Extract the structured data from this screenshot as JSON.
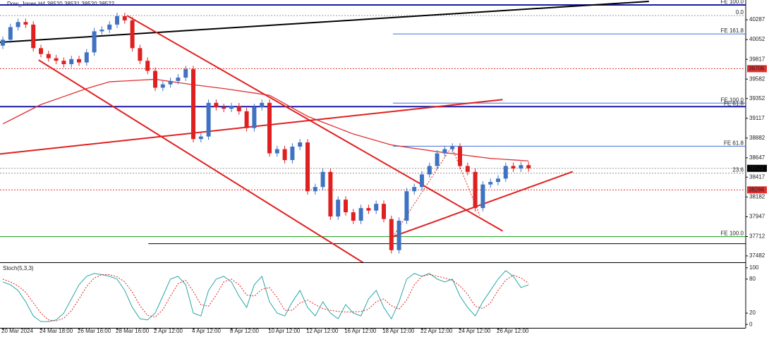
{
  "chart_data": [
    {
      "type": "candlestick",
      "title": "Dow_Jones,H4  38520 38531 38520 38522",
      "up_color": "#3f73c1",
      "down_color": "#e02020",
      "ylim": [
        37406,
        40522
      ],
      "yticks": [
        37482,
        37712,
        37947,
        38182,
        38417,
        38647,
        38882,
        39117,
        39352,
        39582,
        39817,
        40052,
        40287
      ],
      "categories": [
        "20 Mar 2024",
        null,
        null,
        null,
        null,
        "24 Mar 18:00",
        null,
        null,
        null,
        null,
        "26 Mar 16:00",
        null,
        null,
        null,
        null,
        "28 Mar 16:00",
        null,
        null,
        null,
        null,
        "2 Apr 12:00",
        null,
        null,
        null,
        null,
        "4 Apr 12:00",
        null,
        null,
        null,
        null,
        "8 Apr 12:00",
        null,
        null,
        null,
        null,
        "10 Apr 12:00",
        null,
        null,
        null,
        null,
        "12 Apr 12:00",
        null,
        null,
        null,
        null,
        "16 Apr 12:00",
        null,
        null,
        null,
        null,
        "18 Apr 12:00",
        null,
        null,
        null,
        null,
        "22 Apr 12:00",
        null,
        null,
        null,
        null,
        "24 Apr 12:00",
        null,
        null,
        null,
        null,
        "26 Apr 12:00",
        null,
        null,
        null,
        null
      ],
      "open": [
        39980,
        40050,
        40200,
        40260,
        40230,
        39950,
        39880,
        39830,
        39800,
        39760,
        39820,
        39780,
        39900,
        40150,
        40170,
        40230,
        40330,
        40280,
        39950,
        39800,
        39680,
        39480,
        39520,
        39560,
        39600,
        39700,
        38870,
        38900,
        39300,
        39250,
        39230,
        39260,
        39200,
        39000,
        39250,
        39300,
        38700,
        38750,
        38620,
        38780,
        38830,
        38250,
        38300,
        38480,
        37950,
        38150,
        38000,
        37900,
        38050,
        38020,
        38100,
        37920,
        37550,
        37900,
        38250,
        38300,
        38450,
        38550,
        38700,
        38750,
        38780,
        38550,
        38480,
        38050,
        38330,
        38360,
        38400,
        38550,
        38520,
        38560
      ],
      "high": [
        40090,
        40240,
        40300,
        40300,
        40270,
        39990,
        39920,
        39870,
        39840,
        39860,
        39860,
        39940,
        40190,
        40210,
        40270,
        40370,
        40370,
        40320,
        39990,
        39840,
        39720,
        39560,
        39600,
        39640,
        39740,
        39740,
        38940,
        39340,
        39340,
        39290,
        39300,
        39300,
        39240,
        39290,
        39340,
        39340,
        38790,
        38790,
        38820,
        38870,
        38870,
        38340,
        38520,
        38520,
        38190,
        38190,
        38040,
        38090,
        38090,
        38140,
        38140,
        37960,
        37940,
        38290,
        38340,
        38490,
        38590,
        38740,
        38790,
        38820,
        38820,
        38590,
        38520,
        38370,
        38400,
        38440,
        38590,
        38590,
        38600,
        38600
      ],
      "low": [
        39940,
        40010,
        40160,
        40190,
        39910,
        39840,
        39790,
        39760,
        39720,
        39720,
        39740,
        39740,
        39860,
        40110,
        40130,
        40190,
        40240,
        39910,
        39760,
        39640,
        39440,
        39440,
        39480,
        39520,
        39560,
        38830,
        38830,
        38860,
        39210,
        39190,
        39190,
        39160,
        38960,
        38960,
        39210,
        38660,
        38660,
        38580,
        38580,
        38740,
        38210,
        38210,
        38260,
        37910,
        37910,
        37960,
        37860,
        37860,
        37980,
        37980,
        37880,
        37510,
        37510,
        37860,
        38210,
        38260,
        38410,
        38510,
        38660,
        38710,
        38510,
        38440,
        38010,
        38010,
        38290,
        38320,
        38360,
        38480,
        38480,
        38482
      ],
      "close": [
        40050,
        40200,
        40260,
        40230,
        39950,
        39880,
        39830,
        39800,
        39760,
        39820,
        39780,
        39900,
        40150,
        40170,
        40230,
        40330,
        40280,
        39950,
        39800,
        39680,
        39480,
        39520,
        39560,
        39600,
        39700,
        38870,
        38900,
        39300,
        39250,
        39230,
        39260,
        39200,
        39000,
        39250,
        39300,
        38700,
        38750,
        38620,
        38780,
        38830,
        38250,
        38300,
        38480,
        37950,
        38150,
        38000,
        37900,
        38050,
        38020,
        38100,
        37920,
        37550,
        37900,
        38250,
        38300,
        38450,
        38550,
        38700,
        38750,
        38780,
        38550,
        38480,
        38050,
        38330,
        38360,
        38400,
        38550,
        38520,
        38560,
        38522
      ],
      "ma": {
        "color": "#e03030",
        "values": [
          39050,
          39096,
          39142,
          39188,
          39234,
          39280,
          39312,
          39343,
          39375,
          39407,
          39438,
          39470,
          39497,
          39523,
          39550,
          39555,
          39560,
          39565,
          39570,
          39575,
          39580,
          39567,
          39554,
          39541,
          39528,
          39515,
          39504,
          39493,
          39481,
          39470,
          39457,
          39443,
          39430,
          39417,
          39403,
          39390,
          39340,
          39290,
          39240,
          39190,
          39140,
          39105,
          39070,
          39035,
          39000,
          38965,
          38930,
          38904,
          38878,
          38852,
          38826,
          38800,
          38787,
          38773,
          38760,
          38747,
          38733,
          38720,
          38709,
          38697,
          38686,
          38674,
          38663,
          38651,
          38640,
          38634,
          38628,
          38622,
          38616,
          38610
        ]
      },
      "levels": [
        {
          "value": 40463,
          "color": "#1a1aa6",
          "width": 2,
          "name": "FE 100.0"
        },
        {
          "value": 40337,
          "color": "#999999",
          "style": "dotted",
          "name": "0.0"
        },
        {
          "value": 40119,
          "color": "#3a6fd8",
          "from": 51.2,
          "name": "FE 161.8"
        },
        {
          "value": 39706,
          "color": "#e03030",
          "style": "dotted",
          "badge": "#e03030"
        },
        {
          "value": 39297,
          "color": "#3a6fd8",
          "from": 51.2,
          "name": "FE 100.0"
        },
        {
          "value": 39255,
          "color": "#1a1aa6",
          "width": 2,
          "name": "FE 61.8"
        },
        {
          "value": 38785,
          "color": "#3a6fd8",
          "from": 51.2,
          "name": "FE 61.8"
        },
        {
          "value": 38522,
          "color": "#999999",
          "style": "dotted",
          "badge": "#000000"
        },
        {
          "value": 38466,
          "color": "#999999",
          "style": "dotted",
          "name": "23.6"
        },
        {
          "value": 38266,
          "color": "#e03030",
          "style": "dotted",
          "badge": "#e03030"
        },
        {
          "value": 37711,
          "color": "#1a9a1a",
          "name": "FE 100.0"
        },
        {
          "value": 37627,
          "color": "#000000",
          "from": 19.1
        }
      ],
      "trendlines": [
        {
          "color": "#000000",
          "width": 2,
          "x": [
            -0.37,
            84.8
          ],
          "y": [
            40019,
            40505
          ]
        },
        {
          "color": "#e02020",
          "width": 2,
          "x": [
            -0.37,
            65.6
          ],
          "y": [
            38693,
            39339
          ]
        },
        {
          "color": "#e02020",
          "width": 2,
          "x": [
            16.3,
            65.6
          ],
          "y": [
            40337,
            37778
          ]
        },
        {
          "color": "#e02020",
          "width": 2,
          "x": [
            4.7,
            47.3
          ],
          "y": [
            39809,
            37401
          ]
        },
        {
          "color": "#e02020",
          "width": 2,
          "x": [
            51.2,
            74.8
          ],
          "y": [
            37711,
            38483
          ]
        },
        {
          "color": "#e02020",
          "width": 1,
          "style": "dotted",
          "x": [
            51.2,
            58.9,
            62.6
          ],
          "y": [
            37711,
            38777,
            37963
          ]
        }
      ]
    },
    {
      "type": "line",
      "title": "Stoch(5,3,3)",
      "ylim": [
        -6,
        106
      ],
      "yticks": [
        0,
        20,
        80,
        100
      ],
      "series": [
        {
          "color": "#2aa6a6",
          "values": [
            75,
            70,
            60,
            40,
            15,
            5,
            5,
            8,
            20,
            45,
            70,
            85,
            90,
            88,
            85,
            80,
            60,
            30,
            10,
            8,
            20,
            50,
            80,
            85,
            70,
            20,
            15,
            60,
            80,
            85,
            75,
            50,
            30,
            70,
            85,
            40,
            20,
            15,
            40,
            60,
            30,
            15,
            40,
            20,
            10,
            35,
            20,
            15,
            45,
            60,
            30,
            10,
            40,
            80,
            90,
            85,
            90,
            80,
            75,
            80,
            50,
            30,
            15,
            40,
            60,
            80,
            95,
            85,
            65,
            70
          ]
        },
        {
          "color": "#e02020",
          "style": "dotted",
          "values": [
            80,
            75,
            68,
            57,
            38,
            20,
            8,
            6,
            11,
            24,
            45,
            67,
            82,
            88,
            88,
            84,
            75,
            57,
            33,
            16,
            13,
            26,
            50,
            72,
            78,
            58,
            35,
            32,
            52,
            75,
            80,
            70,
            52,
            50,
            62,
            65,
            48,
            25,
            25,
            38,
            43,
            35,
            28,
            25,
            23,
            22,
            22,
            23,
            27,
            40,
            45,
            33,
            27,
            43,
            70,
            85,
            88,
            85,
            82,
            78,
            68,
            53,
            32,
            28,
            38,
            60,
            78,
            87,
            82,
            73
          ]
        }
      ]
    }
  ]
}
